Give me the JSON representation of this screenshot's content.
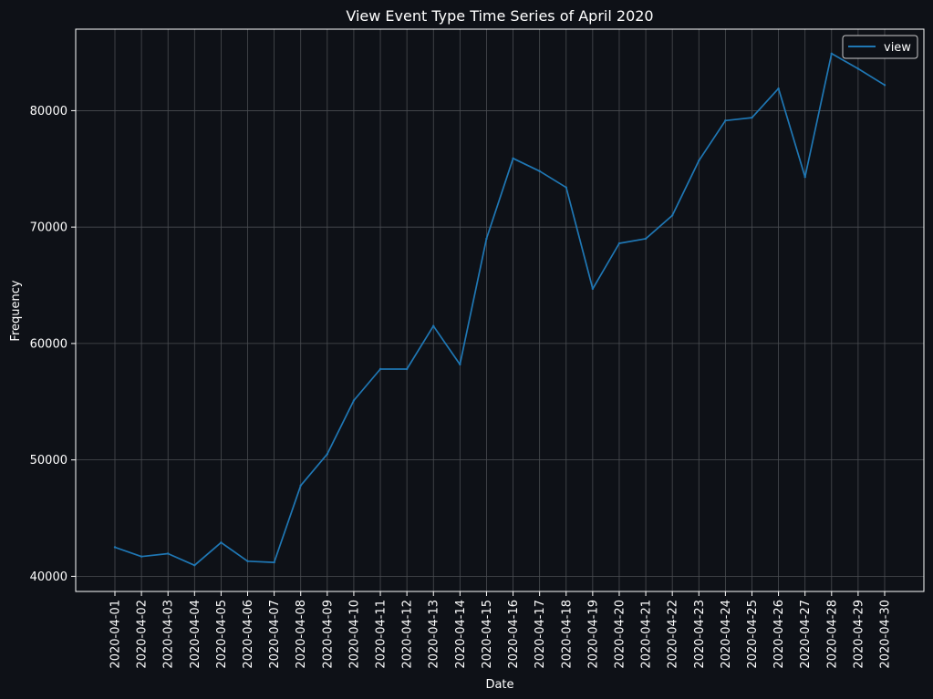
{
  "chart_data": {
    "type": "line",
    "title": "View Event Type Time Series of April 2020",
    "xlabel": "Date",
    "ylabel": "Frequency",
    "x": [
      "2020-04-01",
      "2020-04-02",
      "2020-04-03",
      "2020-04-04",
      "2020-04-05",
      "2020-04-06",
      "2020-04-07",
      "2020-04-08",
      "2020-04-09",
      "2020-04-10",
      "2020-04-11",
      "2020-04-12",
      "2020-04-13",
      "2020-04-14",
      "2020-04-15",
      "2020-04-16",
      "2020-04-17",
      "2020-04-18",
      "2020-04-19",
      "2020-04-20",
      "2020-04-21",
      "2020-04-22",
      "2020-04-23",
      "2020-04-24",
      "2020-04-25",
      "2020-04-26",
      "2020-04-27",
      "2020-04-28",
      "2020-04-29",
      "2020-04-30"
    ],
    "series": [
      {
        "name": "view",
        "color": "#1f77b4",
        "values": [
          42500,
          41700,
          41950,
          40950,
          42900,
          41300,
          41200,
          47800,
          50500,
          55100,
          57800,
          57800,
          61500,
          58200,
          69000,
          75900,
          74800,
          73400,
          64700,
          68600,
          69000,
          71000,
          75700,
          79150,
          79400,
          81900,
          74300,
          84900,
          83600,
          82200
        ]
      }
    ],
    "ylim": [
      38700,
      87000
    ],
    "yticks": [
      40000,
      50000,
      60000,
      70000,
      80000
    ],
    "grid": true,
    "legend": "top-right",
    "colors": {
      "background": "#0e1117",
      "grid": "#4a4d52",
      "text": "#ffffff",
      "line": "#1f77b4"
    }
  }
}
